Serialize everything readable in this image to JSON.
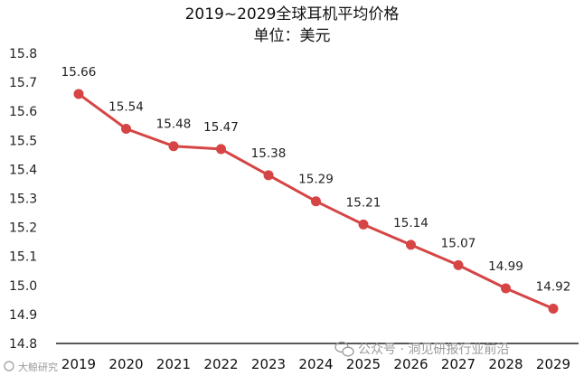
{
  "chart_data": {
    "type": "line",
    "title": "2019~2029全球耳机平均价格",
    "subtitle": "单位：美元",
    "categories": [
      "2019",
      "2020",
      "2021",
      "2022",
      "2023",
      "2024",
      "2025",
      "2026",
      "2027",
      "2028",
      "2029"
    ],
    "series": [
      {
        "values": [
          15.66,
          15.54,
          15.48,
          15.47,
          15.38,
          15.29,
          15.21,
          15.14,
          15.07,
          14.99,
          14.92
        ],
        "labels": [
          "15.66",
          "15.54",
          "15.48",
          "15.47",
          "15.38",
          "15.29",
          "15.21",
          "15.14",
          "15.07",
          "14.99",
          "14.92"
        ],
        "color": "#d64545"
      }
    ],
    "ylim": [
      14.8,
      15.8
    ],
    "yticks": [
      "14.8",
      "14.9",
      "15.0",
      "15.1",
      "15.2",
      "15.3",
      "15.4",
      "15.5",
      "15.6",
      "15.7",
      "15.8"
    ],
    "xlabel": "",
    "ylabel": "",
    "grid": false,
    "legend": "none"
  },
  "watermark": {
    "text": "公众号 · 洞见研报行业前沿",
    "left_text": "大鲸研究"
  },
  "colors": {
    "line": "#d64545",
    "marker": "#d64545",
    "axis": "#222222",
    "watermark": "#9a9a9a"
  },
  "icons": {
    "watermark_icon": "wechat-icon"
  }
}
